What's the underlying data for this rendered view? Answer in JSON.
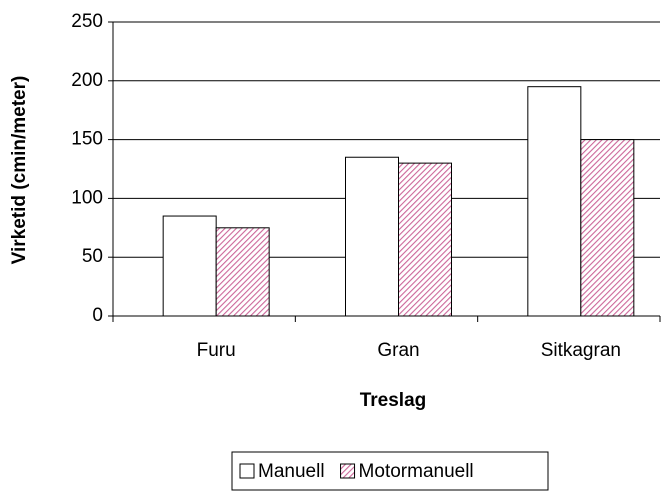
{
  "chart_data": {
    "type": "bar",
    "x_label": "Treslag",
    "y_label": "Virketid (cmin/meter)",
    "categories": [
      "Furu",
      "Gran",
      "Sitkagran"
    ],
    "series": [
      {
        "name": "Manuell",
        "color": "#ffffff",
        "values": [
          85,
          135,
          195
        ]
      },
      {
        "name": "Motormanuell",
        "color": "#cc6699",
        "pattern": "hatch",
        "values": [
          75,
          130,
          150
        ]
      }
    ],
    "ylim": [
      0,
      250
    ],
    "yticks": [
      0,
      50,
      100,
      150,
      200,
      250
    ],
    "grid": true,
    "legend": "bottom"
  }
}
